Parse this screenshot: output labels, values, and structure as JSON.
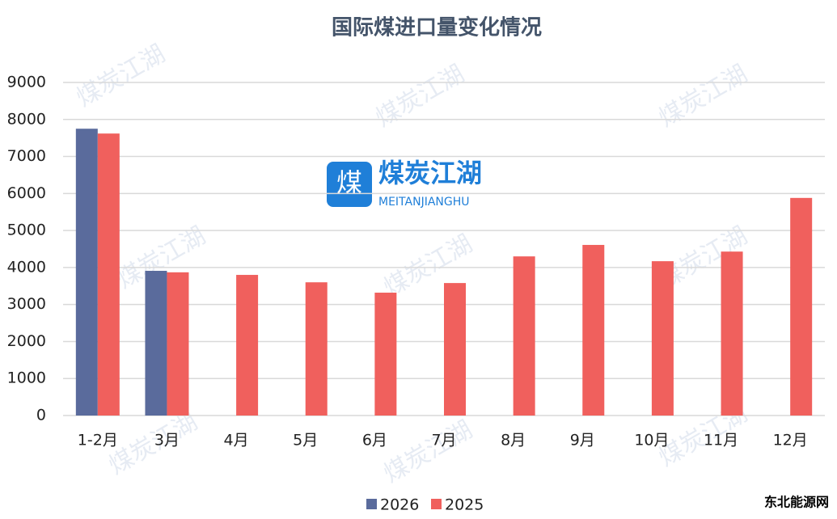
{
  "chart_data": {
    "type": "bar",
    "title": "国际煤进口量变化情况",
    "categories": [
      "1-2月",
      "3月",
      "4月",
      "5月",
      "6月",
      "7月",
      "8月",
      "9月",
      "10月",
      "11月",
      "12月"
    ],
    "series": [
      {
        "name": "2026",
        "color": "#5a6b9c",
        "values": [
          7750,
          3910,
          null,
          null,
          null,
          null,
          null,
          null,
          null,
          null,
          null
        ]
      },
      {
        "name": "2025",
        "color": "#f0605d",
        "values": [
          7620,
          3870,
          3800,
          3600,
          3320,
          3580,
          4300,
          4610,
          4170,
          4430,
          5880
        ]
      }
    ],
    "ylim": [
      0,
      9000
    ],
    "yticks": [
      0,
      1000,
      2000,
      3000,
      4000,
      5000,
      6000,
      7000,
      8000,
      9000
    ],
    "grid": true,
    "legend": "bottom"
  },
  "watermark": {
    "name": "煤炭江湖",
    "subtitle": "MEITANJIANGHU"
  },
  "source": "东北能源网"
}
